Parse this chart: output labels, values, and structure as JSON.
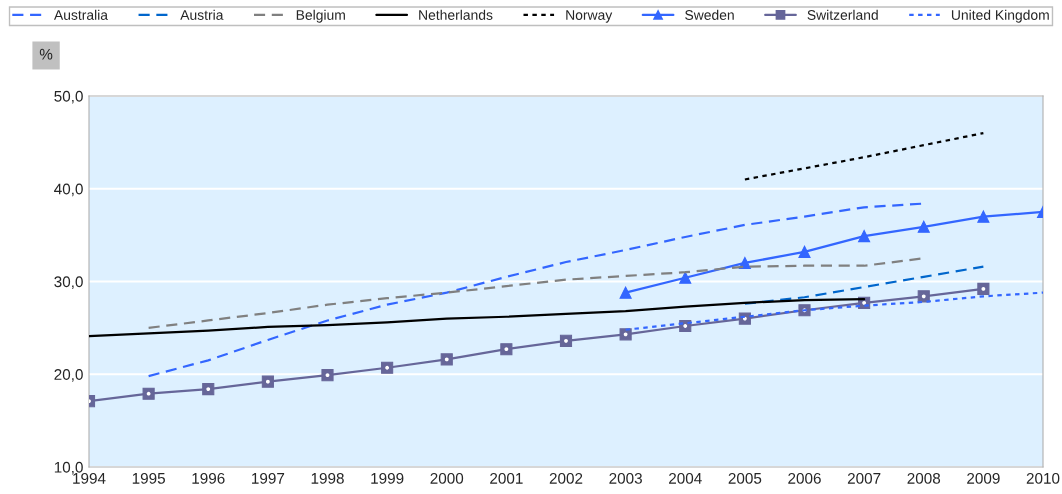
{
  "chart_data": {
    "type": "line",
    "ylabel": "%",
    "categories": [
      "1994",
      "1995",
      "1996",
      "1997",
      "1998",
      "1999",
      "2000",
      "2001",
      "2002",
      "2003",
      "2004",
      "2005",
      "2006",
      "2007",
      "2008",
      "2009",
      "2010"
    ],
    "series": [
      {
        "name": "Australia",
        "color": "#3366ff",
        "line_style": "dashed",
        "values": [
          null,
          19.8,
          21.5,
          23.7,
          25.8,
          27.5,
          28.8,
          30.5,
          32.1,
          33.4,
          34.8,
          36.1,
          37.0,
          38.0,
          38.4,
          null,
          null
        ]
      },
      {
        "name": "Austria",
        "color": "#0066cc",
        "line_style": "dashed",
        "values": [
          null,
          null,
          null,
          null,
          null,
          null,
          null,
          null,
          null,
          null,
          null,
          27.6,
          28.3,
          29.4,
          30.5,
          31.6,
          null
        ]
      },
      {
        "name": "Belgium",
        "color": "#808080",
        "line_style": "dashed",
        "values": [
          null,
          25.0,
          25.8,
          26.6,
          27.5,
          28.2,
          28.8,
          29.5,
          30.2,
          30.6,
          31.0,
          31.6,
          31.7,
          31.7,
          32.5,
          null,
          null
        ]
      },
      {
        "name": "Netherlands",
        "color": "#000000",
        "line_style": "solid",
        "values": [
          24.1,
          24.4,
          24.7,
          25.1,
          25.3,
          25.6,
          26.0,
          26.2,
          26.5,
          26.8,
          27.3,
          27.7,
          28.0,
          28.1,
          null,
          null,
          null
        ]
      },
      {
        "name": "Norway",
        "color": "#000000",
        "line_style": "dotted",
        "values": [
          null,
          null,
          null,
          null,
          null,
          null,
          null,
          null,
          null,
          null,
          null,
          41.0,
          42.2,
          43.4,
          44.7,
          46.0,
          null
        ]
      },
      {
        "name": "Sweden",
        "color": "#3366ff",
        "line_style": "solid",
        "marker": "triangle",
        "values": [
          null,
          null,
          null,
          null,
          null,
          null,
          null,
          null,
          null,
          28.8,
          30.4,
          32.0,
          33.2,
          34.9,
          35.9,
          37.0,
          37.5
        ]
      },
      {
        "name": "Switzerland",
        "color": "#666699",
        "line_style": "solid",
        "marker": "square",
        "values": [
          17.1,
          17.9,
          18.4,
          19.2,
          19.9,
          20.7,
          21.6,
          22.7,
          23.6,
          24.3,
          25.2,
          26.0,
          26.9,
          27.7,
          28.4,
          29.2,
          null
        ]
      },
      {
        "name": "United Kingdom",
        "color": "#3366ff",
        "line_style": "dotted",
        "values": [
          null,
          null,
          null,
          null,
          null,
          null,
          null,
          null,
          null,
          24.8,
          25.5,
          26.2,
          26.9,
          27.4,
          27.8,
          28.4,
          28.8
        ]
      }
    ],
    "ylim": [
      10,
      50
    ],
    "yticks": [
      {
        "value": 10,
        "label": "10,0"
      },
      {
        "value": 20,
        "label": "20,0"
      },
      {
        "value": 30,
        "label": "30,0"
      },
      {
        "value": 40,
        "label": "40,0"
      },
      {
        "value": 50,
        "label": "50,0"
      }
    ],
    "grid": "y",
    "legend": "top"
  }
}
